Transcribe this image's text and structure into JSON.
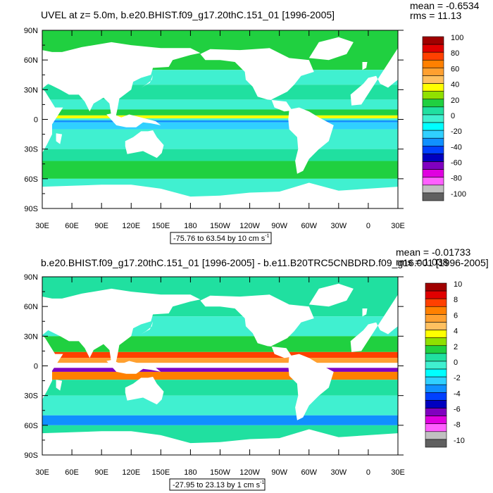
{
  "panels": [
    {
      "title": "UVEL at z=   5.0m, b.e20.BHIST.f09_g17.20thC.151_01 [1996-2005]",
      "stats": {
        "mean": "mean = -0.6534",
        "rms": "rms = 11.13"
      },
      "range_label": "-75.76 to 63.54 by 10 cm s",
      "range_sup": "-1",
      "colorbar": {
        "labels": [
          "100",
          "80",
          "60",
          "40",
          "20",
          "0",
          "-20",
          "-40",
          "-60",
          "-80",
          "-100"
        ],
        "colors": [
          "#a00000",
          "#e00000",
          "#ff4000",
          "#ff8000",
          "#ffa030",
          "#ffc060",
          "#ffff00",
          "#90e000",
          "#20d040",
          "#20e0a0",
          "#40f0d0",
          "#00ffff",
          "#30d0ff",
          "#1090ff",
          "#0040ff",
          "#0000c0",
          "#8000c0",
          "#e000e0",
          "#ff60ff",
          "#c0c0c0",
          "#606060"
        ]
      },
      "zonal_bands": [
        {
          "lat": [
            50,
            90
          ],
          "color": "#20d040"
        },
        {
          "lat": [
            35,
            50
          ],
          "color": "#40f0d0"
        },
        {
          "lat": [
            20,
            35
          ],
          "color": "#20e0a0"
        },
        {
          "lat": [
            10,
            20
          ],
          "color": "#40f0d0"
        },
        {
          "lat": [
            4,
            10
          ],
          "color": "#20d040"
        },
        {
          "lat": [
            1,
            4
          ],
          "color": "#ffff00"
        },
        {
          "lat": [
            -1,
            1
          ],
          "color": "#40f0d0"
        },
        {
          "lat": [
            -3,
            -1
          ],
          "color": "#1090ff"
        },
        {
          "lat": [
            -10,
            -3
          ],
          "color": "#30d0ff"
        },
        {
          "lat": [
            -30,
            -10
          ],
          "color": "#40f0d0"
        },
        {
          "lat": [
            -42,
            -30
          ],
          "color": "#20e0a0"
        },
        {
          "lat": [
            -60,
            -42
          ],
          "color": "#20d040"
        },
        {
          "lat": [
            -90,
            -60
          ],
          "color": "#40f0d0"
        }
      ]
    },
    {
      "title": "b.e20.BHIST.f09_g17.20thC.151_01 [1996-2005] - b.e11.B20TRC5CNBDRD.f09_g16.001 [1996-2005]",
      "stats": {
        "mean": "mean = -0.01733",
        "rms": "rms = 1.038"
      },
      "range_label": "-27.95 to 23.13 by 1 cm s",
      "range_sup": "-1",
      "colorbar": {
        "labels": [
          "10",
          "8",
          "6",
          "4",
          "2",
          "0",
          "-2",
          "-4",
          "-6",
          "-8",
          "-10"
        ],
        "colors": [
          "#a00000",
          "#e00000",
          "#ff4000",
          "#ff8000",
          "#ffa030",
          "#ffc060",
          "#ffff00",
          "#90e000",
          "#20d040",
          "#20e0a0",
          "#40f0d0",
          "#00ffff",
          "#30d0ff",
          "#1090ff",
          "#0040ff",
          "#0000c0",
          "#8000c0",
          "#e000e0",
          "#ff60ff",
          "#c0c0c0",
          "#606060"
        ]
      },
      "zonal_bands": [
        {
          "lat": [
            50,
            90
          ],
          "color": "#20e0a0"
        },
        {
          "lat": [
            30,
            50
          ],
          "color": "#40f0d0"
        },
        {
          "lat": [
            14,
            30
          ],
          "color": "#20d040"
        },
        {
          "lat": [
            8,
            14
          ],
          "color": "#ff4000"
        },
        {
          "lat": [
            3,
            8
          ],
          "color": "#ffa030"
        },
        {
          "lat": [
            -2,
            3
          ],
          "color": "#ffffff"
        },
        {
          "lat": [
            -6,
            -2
          ],
          "color": "#8000c0"
        },
        {
          "lat": [
            -14,
            -6
          ],
          "color": "#ff8000"
        },
        {
          "lat": [
            -30,
            -14
          ],
          "color": "#20e0a0"
        },
        {
          "lat": [
            -50,
            -30
          ],
          "color": "#40f0d0"
        },
        {
          "lat": [
            -60,
            -50
          ],
          "color": "#1090ff"
        },
        {
          "lat": [
            -90,
            -60
          ],
          "color": "#20e0a0"
        }
      ]
    }
  ],
  "axes": {
    "lat_labels": [
      "90N",
      "60N",
      "30N",
      "0",
      "30S",
      "60S",
      "90S"
    ],
    "lon_labels": [
      "30E",
      "60E",
      "90E",
      "120E",
      "150E",
      "180",
      "150W",
      "120W",
      "90W",
      "60W",
      "30W",
      "0",
      "30E"
    ]
  }
}
